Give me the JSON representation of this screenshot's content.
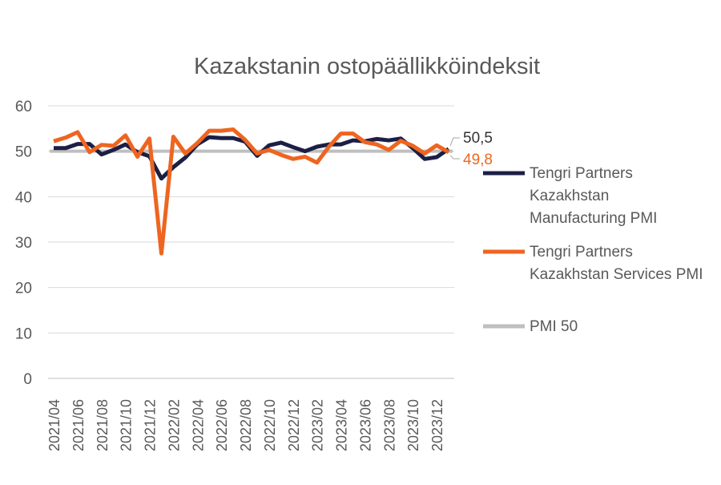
{
  "chart_data": {
    "type": "line",
    "title": "Kazakstanin ostopäällikköindeksit",
    "xlabel": "",
    "ylabel": "",
    "ylim": [
      0,
      60
    ],
    "yticks": [
      "0",
      "10",
      "20",
      "30",
      "40",
      "50",
      "60"
    ],
    "grid": true,
    "legend_position": "right",
    "x": [
      "2021/04",
      "2021/05",
      "2021/06",
      "2021/07",
      "2021/08",
      "2021/09",
      "2021/10",
      "2021/11",
      "2021/12",
      "2022/01",
      "2022/02",
      "2022/03",
      "2022/04",
      "2022/05",
      "2022/06",
      "2022/07",
      "2022/08",
      "2022/09",
      "2022/10",
      "2022/11",
      "2022/12",
      "2023/01",
      "2023/02",
      "2023/03",
      "2023/04",
      "2023/05",
      "2023/06",
      "2023/07",
      "2023/08",
      "2023/09",
      "2023/10",
      "2023/11",
      "2023/12",
      "2024/01"
    ],
    "xtick_labels": [
      "2021/04",
      "2021/06",
      "2021/08",
      "2021/10",
      "2021/12",
      "2022/02",
      "2022/04",
      "2022/06",
      "2022/08",
      "2022/10",
      "2022/12",
      "2023/02",
      "2023/04",
      "2023/06",
      "2023/08",
      "2023/10",
      "2023/12"
    ],
    "series": [
      {
        "name": "Tengri Partners Kazakhstan Manufacturing PMI",
        "legend_lines": [
          "Tengri Partners",
          "Kazakhstan",
          "Manufacturing PMI"
        ],
        "color": "#1c1f45",
        "end_label": "50,5",
        "end_label_color": "#333333",
        "values": [
          50.7,
          50.7,
          51.6,
          51.6,
          49.3,
          50.3,
          51.5,
          49.8,
          48.9,
          44.0,
          46.5,
          48.6,
          51.5,
          53.1,
          52.9,
          52.9,
          52.1,
          49.0,
          51.3,
          51.9,
          50.9,
          50.0,
          51.0,
          51.5,
          51.5,
          52.4,
          52.2,
          52.7,
          52.4,
          52.8,
          50.7,
          48.3,
          48.7,
          50.5
        ]
      },
      {
        "name": "Tengri Partners Kazakhstan Services PMI",
        "legend_lines": [
          "Tengri Partners",
          "Kazakhstan Services PMI"
        ],
        "color": "#ee6520",
        "end_label": "49,8",
        "end_label_color": "#ee6520",
        "values": [
          52.2,
          53.0,
          54.2,
          49.8,
          51.4,
          51.2,
          53.5,
          48.8,
          52.8,
          27.5,
          53.2,
          49.5,
          51.8,
          54.5,
          54.5,
          54.8,
          52.5,
          49.5,
          50.3,
          49.2,
          48.3,
          48.8,
          47.5,
          51.0,
          53.9,
          53.9,
          52.0,
          51.5,
          50.3,
          52.3,
          51.2,
          49.5,
          51.3,
          49.8
        ]
      },
      {
        "name": "PMI 50",
        "legend_lines": [
          "PMI 50"
        ],
        "color": "#bfbfbf",
        "constant": 50
      }
    ]
  }
}
